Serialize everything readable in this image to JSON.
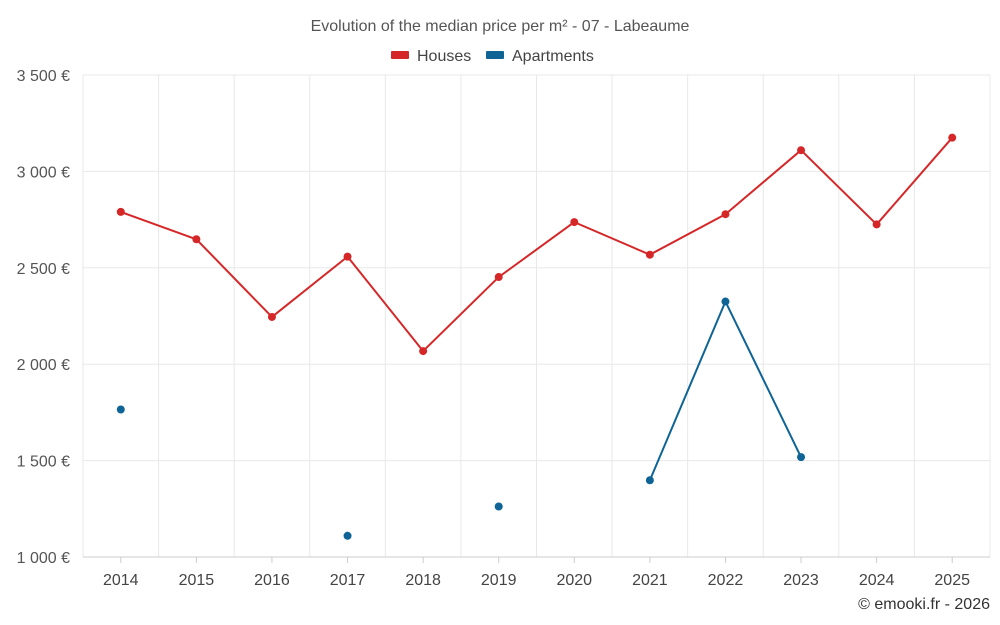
{
  "chart_data": {
    "type": "line",
    "title": "Evolution of the median price per m² - 07 - Labeaume",
    "categories": [
      "2014",
      "2015",
      "2016",
      "2017",
      "2018",
      "2019",
      "2020",
      "2021",
      "2022",
      "2023",
      "2024",
      "2025"
    ],
    "ylim": [
      1000,
      3500
    ],
    "yticks": [
      1000,
      1500,
      2000,
      2500,
      3000,
      3500
    ],
    "ytick_labels": [
      "1 000 €",
      "1 500 €",
      "2 000 €",
      "2 500 €",
      "3 000 €",
      "3 500 €"
    ],
    "grid": true,
    "legend_position": "top-center",
    "series": [
      {
        "name": "Houses",
        "color": "#d62728",
        "values": [
          2790,
          2648,
          2245,
          2558,
          2068,
          2452,
          2737,
          2568,
          2778,
          3110,
          2725,
          3175
        ]
      },
      {
        "name": "Apartments",
        "color": "#0f6496",
        "values": [
          1765,
          null,
          null,
          1110,
          null,
          1262,
          null,
          1398,
          2325,
          1518,
          null,
          null
        ]
      }
    ]
  },
  "credit": "© emooki.fr - 2026"
}
